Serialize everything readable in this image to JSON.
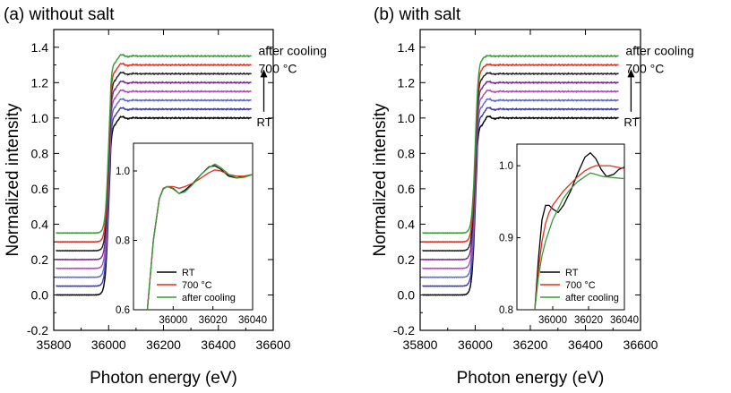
{
  "chart_data": [
    {
      "type": "line",
      "title": "(a) without salt",
      "xlabel": "Photon energy (eV)",
      "ylabel": "Normalized intensity",
      "xlim": [
        35800,
        36600
      ],
      "ylim": [
        -0.2,
        1.5
      ],
      "xticks": [
        35800,
        36000,
        36200,
        36400,
        36600
      ],
      "yticks": [
        -0.2,
        0.0,
        0.2,
        0.4,
        0.6,
        0.8,
        1.0,
        1.2,
        1.4
      ],
      "edge": 36000,
      "annotations": {
        "after_cooling": "after cooling",
        "temp_700": "700 °C",
        "rt": "RT"
      },
      "series": [
        {
          "color": "#000000",
          "pre": 0.0,
          "post": 1.0,
          "osc": 0.02
        },
        {
          "color": "#3a3ab0",
          "pre": 0.05,
          "post": 1.05,
          "osc": 0.02
        },
        {
          "color": "#5a6ad0",
          "pre": 0.1,
          "post": 1.1,
          "osc": 0.02
        },
        {
          "color": "#b04ab8",
          "pre": 0.15,
          "post": 1.15,
          "osc": 0.02
        },
        {
          "color": "#7a2a8a",
          "pre": 0.2,
          "post": 1.2,
          "osc": 0.02
        },
        {
          "color": "#222222",
          "pre": 0.25,
          "post": 1.25,
          "osc": 0.02
        },
        {
          "color": "#e03020",
          "pre": 0.3,
          "post": 1.3,
          "osc": 0.02
        },
        {
          "color": "#3a9a3a",
          "pre": 0.35,
          "post": 1.35,
          "osc": 0.02
        }
      ],
      "inset": {
        "xlim": [
          35980,
          36040
        ],
        "ylim": [
          0.6,
          1.08
        ],
        "xticks": [
          36000,
          36020,
          36040
        ],
        "yticks": [
          0.6,
          0.8,
          1.0
        ],
        "legend": [
          "RT",
          "700 °C",
          "after cooling"
        ],
        "series": [
          {
            "name": "RT",
            "color": "#000000",
            "x": [
              35987,
              35990,
              35993,
              35995,
              35997,
              36000,
              36003,
              36006,
              36010,
              36014,
              36018,
              36021,
              36024,
              36028,
              36032,
              36036,
              36040
            ],
            "y": [
              0.6,
              0.8,
              0.92,
              0.95,
              0.955,
              0.95,
              0.935,
              0.945,
              0.965,
              0.99,
              1.012,
              1.015,
              1.005,
              0.985,
              0.98,
              0.985,
              0.99
            ]
          },
          {
            "name": "700 °C",
            "color": "#e03020",
            "x": [
              35987,
              35990,
              35993,
              35995,
              35997,
              36000,
              36003,
              36006,
              36010,
              36014,
              36018,
              36021,
              36024,
              36028,
              36032,
              36036,
              36040
            ],
            "y": [
              0.6,
              0.8,
              0.92,
              0.95,
              0.955,
              0.955,
              0.95,
              0.955,
              0.965,
              0.98,
              0.995,
              1.003,
              1.0,
              0.99,
              0.985,
              0.985,
              0.99
            ]
          },
          {
            "name": "after cooling",
            "color": "#3a9a3a",
            "x": [
              35987,
              35990,
              35993,
              35995,
              35997,
              36000,
              36003,
              36006,
              36010,
              36014,
              36018,
              36021,
              36024,
              36028,
              36032,
              36036,
              36040
            ],
            "y": [
              0.6,
              0.8,
              0.92,
              0.948,
              0.955,
              0.948,
              0.935,
              0.94,
              0.962,
              0.99,
              1.01,
              1.02,
              1.01,
              0.99,
              0.98,
              0.982,
              0.99
            ]
          }
        ]
      }
    },
    {
      "type": "line",
      "title": "(b) with salt",
      "xlabel": "Photon energy (eV)",
      "ylabel": "Normalized intensity",
      "xlim": [
        35800,
        36600
      ],
      "ylim": [
        -0.2,
        1.5
      ],
      "xticks": [
        35800,
        36000,
        36200,
        36400,
        36600
      ],
      "yticks": [
        -0.2,
        0.0,
        0.2,
        0.4,
        0.6,
        0.8,
        1.0,
        1.2,
        1.4
      ],
      "edge": 36000,
      "annotations": {
        "after_cooling": "after cooling",
        "temp_700": "700 °C",
        "rt": "RT"
      },
      "series": [
        {
          "color": "#000000",
          "pre": 0.0,
          "post": 1.0,
          "osc": 0.025
        },
        {
          "color": "#3a3ab0",
          "pre": 0.05,
          "post": 1.05,
          "osc": 0.022
        },
        {
          "color": "#5a6ad0",
          "pre": 0.1,
          "post": 1.1,
          "osc": 0.02
        },
        {
          "color": "#b04ab8",
          "pre": 0.15,
          "post": 1.15,
          "osc": 0.018
        },
        {
          "color": "#7a2a8a",
          "pre": 0.2,
          "post": 1.2,
          "osc": 0.015
        },
        {
          "color": "#222222",
          "pre": 0.25,
          "post": 1.25,
          "osc": 0.012
        },
        {
          "color": "#e03020",
          "pre": 0.3,
          "post": 1.3,
          "osc": 0.008
        },
        {
          "color": "#3a9a3a",
          "pre": 0.35,
          "post": 1.35,
          "osc": 0.005
        }
      ],
      "inset": {
        "xlim": [
          35980,
          36040
        ],
        "ylim": [
          0.8,
          1.03
        ],
        "xticks": [
          36000,
          36020,
          36040
        ],
        "yticks": [
          0.8,
          0.9,
          1.0
        ],
        "legend": [
          "RT",
          "700 °C",
          "after cooling"
        ],
        "series": [
          {
            "name": "RT",
            "color": "#000000",
            "x": [
              35990,
              35992,
              35994,
              35996,
              35998,
              36000,
              36003,
              36006,
              36010,
              36014,
              36018,
              36021,
              36024,
              36027,
              36030,
              36034,
              36037,
              36040
            ],
            "y": [
              0.8,
              0.87,
              0.925,
              0.945,
              0.945,
              0.94,
              0.935,
              0.945,
              0.965,
              0.99,
              1.012,
              1.018,
              1.01,
              0.995,
              0.985,
              0.988,
              0.995,
              0.998
            ]
          },
          {
            "name": "700 °C",
            "color": "#e03020",
            "x": [
              35990,
              35992,
              35994,
              35996,
              35998,
              36000,
              36003,
              36006,
              36010,
              36014,
              36018,
              36021,
              36024,
              36028,
              36032,
              36036,
              36040
            ],
            "y": [
              0.8,
              0.855,
              0.895,
              0.92,
              0.935,
              0.945,
              0.955,
              0.965,
              0.975,
              0.985,
              0.993,
              0.997,
              1.0,
              1.0,
              1.0,
              0.998,
              0.996
            ]
          },
          {
            "name": "after cooling",
            "color": "#3a9a3a",
            "x": [
              35990,
              35992,
              35994,
              35996,
              35998,
              36000,
              36003,
              36006,
              36010,
              36014,
              36018,
              36021,
              36024,
              36028,
              36032,
              36036,
              36040
            ],
            "y": [
              0.8,
              0.845,
              0.875,
              0.895,
              0.91,
              0.925,
              0.94,
              0.955,
              0.968,
              0.978,
              0.985,
              0.99,
              0.988,
              0.985,
              0.984,
              0.983,
              0.982
            ]
          }
        ]
      }
    }
  ]
}
